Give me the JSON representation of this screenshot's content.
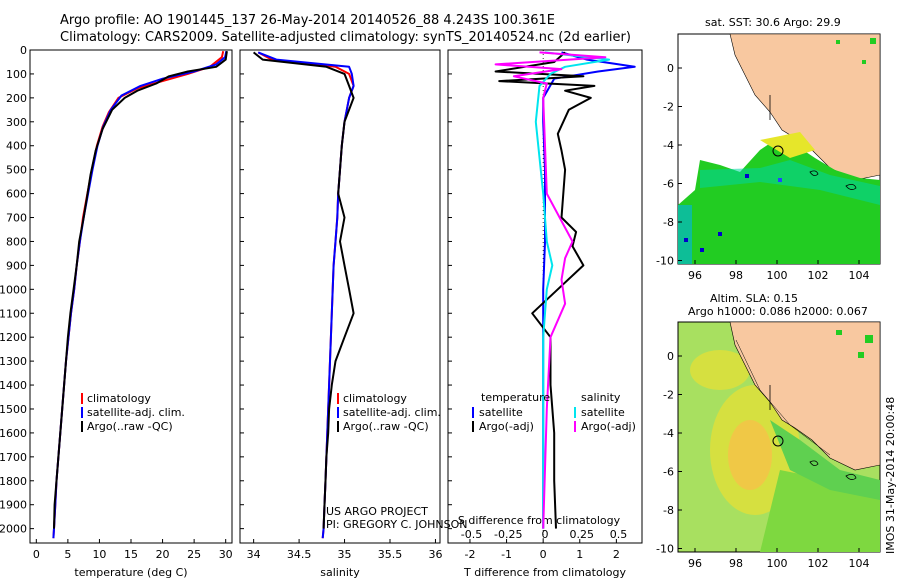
{
  "header": {
    "line1": "Argo profile: AO 1901445_137 26-May-2014 20140526_88 4.243S 100.361E",
    "line2": "Climatology: CARS2009. Satellite-adjusted climatology: synTS_20140524.nc (2d earlier)"
  },
  "credit": {
    "line1": "US ARGO PROJECT",
    "line2": "PI: GREGORY C. JOHNSON"
  },
  "side_caption": "IMOS 31-May-2014 20:00:48",
  "colors": {
    "climatology": "#ff0000",
    "satellite": "#0000ff",
    "argo": "#000000",
    "sal_satellite": "#00e5ee",
    "sal_argo": "#ff00ff",
    "land": "#f8c8a0",
    "sst_sea": "#22cc22"
  },
  "chart_data": [
    {
      "type": "line",
      "id": "temperature",
      "xlabel": "temperature (deg C)",
      "xlim": [
        -1,
        31
      ],
      "ylim": [
        2060,
        0
      ],
      "xticks": [
        0,
        5,
        10,
        15,
        20,
        25,
        30
      ],
      "yticks": [
        0,
        100,
        200,
        300,
        400,
        500,
        600,
        700,
        800,
        900,
        1000,
        1100,
        1200,
        1300,
        1400,
        1500,
        1600,
        1700,
        1800,
        1900,
        2000
      ],
      "legend": [
        "climatology",
        "satellite-adj. clim.",
        "Argo(..raw -QC)"
      ],
      "series": [
        {
          "name": "climatology",
          "color": "#ff0000",
          "points": [
            [
              29.6,
              5
            ],
            [
              29.4,
              30
            ],
            [
              27.5,
              70
            ],
            [
              24,
              100
            ],
            [
              20,
              130
            ],
            [
              16,
              160
            ],
            [
              13,
              200
            ],
            [
              11.5,
              260
            ],
            [
              10.5,
              320
            ],
            [
              9.6,
              400
            ],
            [
              8.8,
              500
            ],
            [
              8.1,
              600
            ],
            [
              7.4,
              700
            ],
            [
              6.9,
              800
            ],
            [
              6.4,
              900
            ],
            [
              6,
              1000
            ],
            [
              5.5,
              1100
            ],
            [
              5.1,
              1200
            ],
            [
              4.7,
              1300
            ],
            [
              4.4,
              1400
            ],
            [
              4.1,
              1500
            ],
            [
              3.8,
              1600
            ],
            [
              3.5,
              1700
            ],
            [
              3.2,
              1800
            ],
            [
              3,
              1900
            ],
            [
              2.8,
              2000
            ],
            [
              2.7,
              2040
            ]
          ]
        },
        {
          "name": "satellite-adj. clim.",
          "color": "#0000ff",
          "points": [
            [
              30.1,
              5
            ],
            [
              29.9,
              30
            ],
            [
              28.5,
              60
            ],
            [
              25,
              90
            ],
            [
              20,
              120
            ],
            [
              16.5,
              150
            ],
            [
              13.5,
              190
            ],
            [
              11.8,
              250
            ],
            [
              10.6,
              320
            ],
            [
              9.7,
              400
            ],
            [
              8.9,
              500
            ],
            [
              8.2,
              600
            ],
            [
              7.5,
              700
            ],
            [
              6.9,
              800
            ],
            [
              6.4,
              900
            ],
            [
              6,
              1000
            ],
            [
              5.5,
              1100
            ],
            [
              5.1,
              1200
            ],
            [
              4.7,
              1300
            ],
            [
              4.4,
              1400
            ],
            [
              4.1,
              1500
            ],
            [
              3.8,
              1600
            ],
            [
              3.5,
              1700
            ],
            [
              3.2,
              1800
            ],
            [
              3,
              1900
            ],
            [
              2.8,
              2000
            ],
            [
              2.7,
              2040
            ]
          ]
        },
        {
          "name": "Argo(..raw -QC)",
          "color": "#000000",
          "points": [
            [
              30.2,
              5
            ],
            [
              30,
              40
            ],
            [
              28.5,
              70
            ],
            [
              24,
              90
            ],
            [
              21,
              110
            ],
            [
              19,
              140
            ],
            [
              16,
              170
            ],
            [
              14,
              200
            ],
            [
              12,
              250
            ],
            [
              10.5,
              330
            ],
            [
              9.4,
              420
            ],
            [
              8.6,
              520
            ],
            [
              8,
              620
            ],
            [
              7.5,
              700
            ],
            [
              6.8,
              800
            ],
            [
              6.4,
              900
            ],
            [
              5.9,
              1000
            ],
            [
              5.4,
              1100
            ],
            [
              5,
              1200
            ],
            [
              4.7,
              1300
            ],
            [
              4.4,
              1400
            ],
            [
              4.1,
              1500
            ],
            [
              3.8,
              1600
            ],
            [
              3.5,
              1700
            ],
            [
              3.2,
              1800
            ],
            [
              2.9,
              1900
            ],
            [
              2.8,
              2000
            ]
          ]
        }
      ]
    },
    {
      "type": "line",
      "id": "salinity",
      "xlabel": "salinity",
      "xlim": [
        33.85,
        36.05
      ],
      "ylim": [
        2060,
        0
      ],
      "xticks": [
        34,
        34.5,
        35,
        35.5,
        36
      ],
      "legend": [
        "climatology",
        "satellite-adj. clim.",
        "Argo(..raw -QC)"
      ],
      "series": [
        {
          "name": "climatology",
          "color": "#ff0000",
          "points": [
            [
              34.05,
              10
            ],
            [
              34.2,
              40
            ],
            [
              34.9,
              70
            ],
            [
              35.05,
              100
            ],
            [
              35.1,
              150
            ],
            [
              35.05,
              200
            ],
            [
              35.0,
              300
            ],
            [
              34.97,
              400
            ],
            [
              34.95,
              500
            ],
            [
              34.93,
              600
            ],
            [
              34.92,
              700
            ],
            [
              34.9,
              800
            ],
            [
              34.88,
              900
            ],
            [
              34.87,
              1000
            ],
            [
              34.86,
              1100
            ],
            [
              34.85,
              1200
            ],
            [
              34.84,
              1300
            ],
            [
              34.83,
              1400
            ],
            [
              34.82,
              1500
            ],
            [
              34.81,
              1600
            ],
            [
              34.8,
              1700
            ],
            [
              34.79,
              1800
            ],
            [
              34.78,
              1900
            ],
            [
              34.77,
              2000
            ],
            [
              34.76,
              2040
            ]
          ]
        },
        {
          "name": "satellite-adj. clim.",
          "color": "#0000ff",
          "points": [
            [
              34.05,
              10
            ],
            [
              34.25,
              40
            ],
            [
              35.05,
              70
            ],
            [
              35.08,
              100
            ],
            [
              35.1,
              150
            ],
            [
              35.05,
              200
            ],
            [
              35.0,
              300
            ],
            [
              34.97,
              400
            ],
            [
              34.95,
              500
            ],
            [
              34.93,
              600
            ],
            [
              34.92,
              700
            ],
            [
              34.9,
              800
            ],
            [
              34.88,
              900
            ],
            [
              34.87,
              1000
            ],
            [
              34.86,
              1100
            ],
            [
              34.85,
              1200
            ],
            [
              34.84,
              1300
            ],
            [
              34.83,
              1400
            ],
            [
              34.82,
              1500
            ],
            [
              34.81,
              1600
            ],
            [
              34.8,
              1700
            ],
            [
              34.79,
              1800
            ],
            [
              34.78,
              1900
            ],
            [
              34.77,
              2000
            ],
            [
              34.76,
              2040
            ]
          ]
        },
        {
          "name": "Argo(..raw -QC)",
          "color": "#000000",
          "points": [
            [
              34.0,
              10
            ],
            [
              34.1,
              40
            ],
            [
              34.8,
              70
            ],
            [
              35.0,
              100
            ],
            [
              35.05,
              150
            ],
            [
              35.1,
              200
            ],
            [
              35.0,
              300
            ],
            [
              34.97,
              400
            ],
            [
              34.95,
              500
            ],
            [
              34.93,
              600
            ],
            [
              35.0,
              700
            ],
            [
              34.95,
              800
            ],
            [
              35.0,
              900
            ],
            [
              35.05,
              1000
            ],
            [
              35.1,
              1100
            ],
            [
              35.0,
              1200
            ],
            [
              34.9,
              1300
            ],
            [
              34.86,
              1400
            ],
            [
              34.83,
              1500
            ],
            [
              34.82,
              1600
            ],
            [
              34.8,
              1700
            ],
            [
              34.79,
              1800
            ],
            [
              34.78,
              1900
            ],
            [
              34.77,
              2000
            ]
          ]
        }
      ]
    },
    {
      "type": "line",
      "id": "difference",
      "xlabel_top": "S difference from climatology",
      "xlabel": "T difference from climatology",
      "xlim": [
        -2.6,
        2.7
      ],
      "ylim": [
        2060,
        0
      ],
      "xticks": [
        -2,
        -1,
        0,
        1,
        2
      ],
      "xticks_s": [
        -0.5,
        -0.25,
        0,
        0.25,
        0.5
      ],
      "legend_left": {
        "title": "temperature",
        "items": [
          "satellite",
          "Argo(-adj)"
        ]
      },
      "legend_right": {
        "title": "salinity",
        "items": [
          "satellite",
          "Argo(-adj)"
        ]
      },
      "series": [
        {
          "name": "T satellite",
          "color": "#0000ff",
          "points": [
            [
              0.5,
              10
            ],
            [
              1.2,
              40
            ],
            [
              2.5,
              70
            ],
            [
              1.5,
              90
            ],
            [
              0.3,
              120
            ],
            [
              0,
              200
            ],
            [
              0,
              300
            ],
            [
              0.05,
              500
            ],
            [
              0.05,
              800
            ],
            [
              0,
              1000
            ],
            [
              0,
              1500
            ],
            [
              0,
              2000
            ]
          ]
        },
        {
          "name": "T Argo(-adj)",
          "color": "#000000",
          "points": [
            [
              0.6,
              10
            ],
            [
              0.3,
              50
            ],
            [
              -1.3,
              90
            ],
            [
              1.1,
              110
            ],
            [
              -1.2,
              130
            ],
            [
              1.4,
              150
            ],
            [
              0.6,
              170
            ],
            [
              1.3,
              200
            ],
            [
              0.7,
              250
            ],
            [
              0.4,
              350
            ],
            [
              0.5,
              420
            ],
            [
              0.6,
              500
            ],
            [
              0.5,
              700
            ],
            [
              0.9,
              760
            ],
            [
              0.8,
              820
            ],
            [
              1.1,
              900
            ],
            [
              0.4,
              1000
            ],
            [
              -0.3,
              1100
            ],
            [
              0.2,
              1200
            ],
            [
              0.2,
              1400
            ],
            [
              0.3,
              1600
            ],
            [
              0.3,
              1800
            ],
            [
              0.35,
              2000
            ]
          ]
        },
        {
          "name": "S satellite",
          "color": "#00e5ee",
          "points": [
            [
              0.05,
              10
            ],
            [
              1.8,
              40
            ],
            [
              0.6,
              70
            ],
            [
              0.2,
              100
            ],
            [
              -0.1,
              150
            ],
            [
              -0.2,
              300
            ],
            [
              -0.1,
              450
            ],
            [
              0,
              600
            ],
            [
              0.1,
              800
            ],
            [
              0.25,
              900
            ],
            [
              0.1,
              1000
            ],
            [
              0,
              1200
            ],
            [
              0,
              1500
            ],
            [
              0,
              2000
            ]
          ]
        },
        {
          "name": "S Argo(-adj)",
          "color": "#ff00ff",
          "points": [
            [
              -0.1,
              10
            ],
            [
              1.7,
              30
            ],
            [
              -1.3,
              60
            ],
            [
              0.5,
              80
            ],
            [
              -0.8,
              110
            ],
            [
              0.1,
              140
            ],
            [
              0,
              200
            ],
            [
              0.05,
              400
            ],
            [
              0.1,
              600
            ],
            [
              0.8,
              800
            ],
            [
              0.6,
              870
            ],
            [
              0.5,
              960
            ],
            [
              0.6,
              1060
            ],
            [
              0.2,
              1200
            ],
            [
              0.1,
              1500
            ],
            [
              0,
              2000
            ]
          ]
        }
      ]
    }
  ],
  "maps": {
    "sst": {
      "caption": "sat. SST: 30.6  Argo: 29.9",
      "xticks": [
        "96",
        "98",
        "100",
        "102",
        "104"
      ],
      "yticks": [
        "0",
        "-2",
        "-4",
        "-6",
        "-8",
        "-10"
      ]
    },
    "sla": {
      "caption1": "Altim. SLA: 0.15",
      "caption2": "Argo h1000: 0.086  h2000: 0.067",
      "xticks": [
        "96",
        "98",
        "100",
        "102",
        "104"
      ],
      "yticks": [
        "0",
        "-2",
        "-4",
        "-6",
        "-8",
        "-10"
      ]
    }
  }
}
